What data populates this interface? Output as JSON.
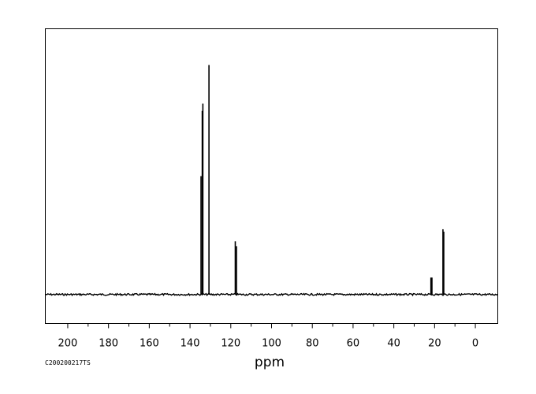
{
  "sample_id": "C200200217TS",
  "chart_data": {
    "type": "line",
    "title": "",
    "xlabel": "ppm",
    "ylabel": "",
    "xlim": [
      211,
      -11
    ],
    "ylim": [
      -0.12,
      1.1
    ],
    "x_reversed": true,
    "grid": false,
    "x_ticks": [
      200,
      180,
      160,
      140,
      120,
      100,
      80,
      60,
      40,
      20,
      0
    ],
    "peaks": [
      {
        "ppm": 134.6,
        "intensity": 0.49
      },
      {
        "ppm": 134.0,
        "intensity": 0.76
      },
      {
        "ppm": 133.7,
        "intensity": 0.79
      },
      {
        "ppm": 130.7,
        "intensity": 0.95
      },
      {
        "ppm": 117.8,
        "intensity": 0.22
      },
      {
        "ppm": 117.2,
        "intensity": 0.2
      },
      {
        "ppm": 21.8,
        "intensity": 0.07
      },
      {
        "ppm": 21.3,
        "intensity": 0.07
      },
      {
        "ppm": 15.9,
        "intensity": 0.27
      },
      {
        "ppm": 15.5,
        "intensity": 0.26
      }
    ]
  }
}
